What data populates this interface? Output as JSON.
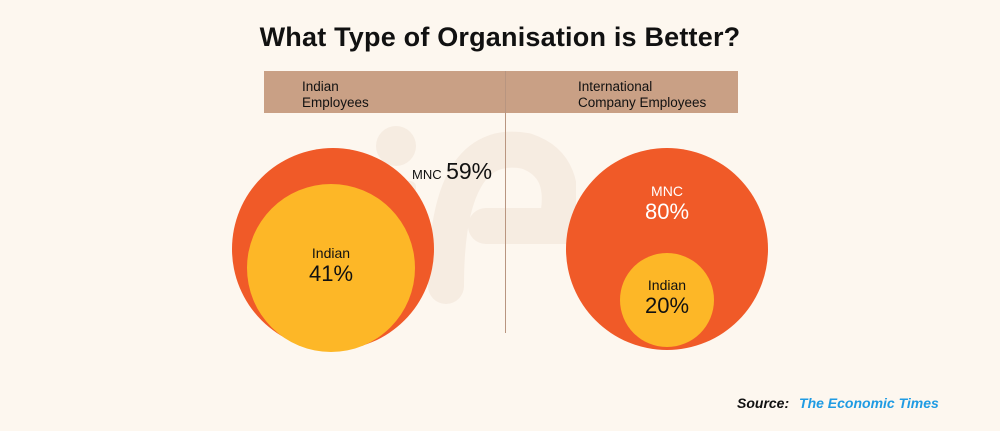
{
  "chart_data": {
    "type": "bubble-comparison",
    "title": "What Type of Organisation is Better?",
    "groups": [
      {
        "name": "Indian Employees",
        "categories": [
          {
            "label": "MNC",
            "value": 59,
            "display": "59%"
          },
          {
            "label": "Indian",
            "value": 41,
            "display": "41%"
          }
        ]
      },
      {
        "name": "International Company Employees",
        "categories": [
          {
            "label": "MNC",
            "value": 80,
            "display": "80%"
          },
          {
            "label": "Indian",
            "value": 20,
            "display": "20%"
          }
        ]
      }
    ],
    "colors": {
      "MNC": "#f05a28",
      "Indian": "#fdb727"
    }
  },
  "header": {
    "left_line1": "Indian",
    "left_line2": "Employees",
    "right_line1": "International",
    "right_line2": "Company Employees"
  },
  "source": {
    "label": "Source:",
    "name": "The Economic Times"
  },
  "theme": {
    "background": "#fdf7ef",
    "header_bar": "#c9a085",
    "source_color": "#1f9be3"
  }
}
